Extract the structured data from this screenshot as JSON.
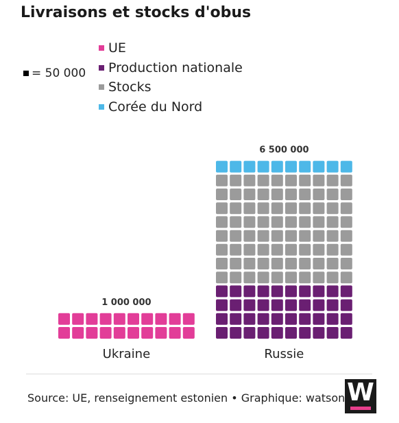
{
  "title": "Livraisons et stocks d'obus",
  "unit_note": "= 50 000",
  "colors": {
    "ue": "#e23d98",
    "production": "#6a1f72",
    "stocks": "#9b9b9b",
    "coree": "#4db8e8"
  },
  "chart_data": {
    "type": "waffle",
    "unit_value": 50000,
    "legend": [
      {
        "key": "ue",
        "label": "UE"
      },
      {
        "key": "production",
        "label": "Production nationale"
      },
      {
        "key": "stocks",
        "label": "Stocks"
      },
      {
        "key": "coree",
        "label": "Corée du Nord"
      }
    ],
    "groups": [
      {
        "name": "Ukraine",
        "total_label": "1 000 000",
        "segments": [
          {
            "key": "ue",
            "value": 1000000
          }
        ]
      },
      {
        "name": "Russie",
        "total_label": "6 500 000",
        "segments": [
          {
            "key": "production",
            "value": 2000000
          },
          {
            "key": "stocks",
            "value": 4000000
          },
          {
            "key": "coree",
            "value": 500000
          }
        ]
      }
    ]
  },
  "footer": {
    "source": "Source: UE, renseignement estonien • Graphique: watson",
    "logo_letter": "W"
  }
}
